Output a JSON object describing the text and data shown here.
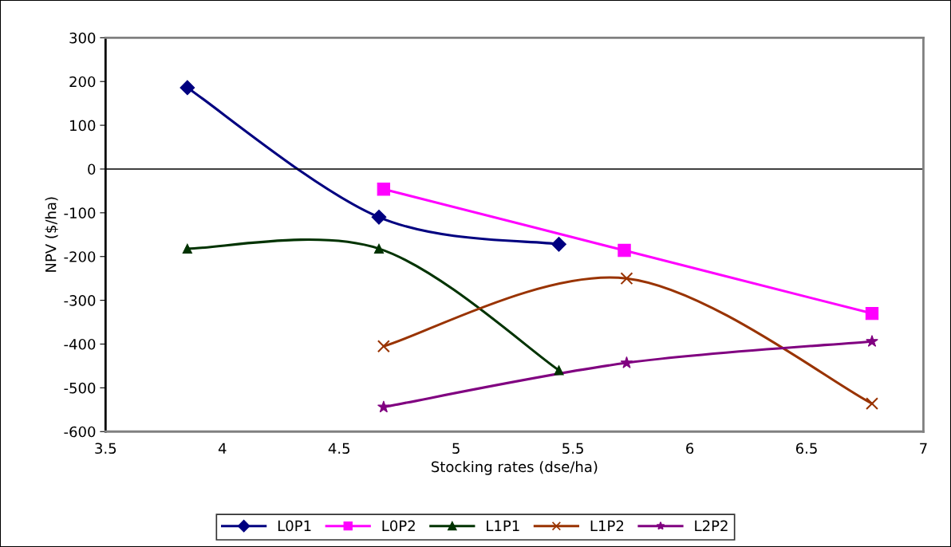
{
  "chart_data": {
    "type": "line",
    "xlabel": "Stocking rates (dse/ha)",
    "ylabel": "NPV ($/ha)",
    "xlim": [
      3.5,
      7
    ],
    "xticks": [
      3.5,
      4,
      4.5,
      5,
      5.5,
      6,
      6.5,
      7
    ],
    "ylim": [
      -600,
      300
    ],
    "yticks": [
      -600,
      -500,
      -400,
      -300,
      -200,
      -100,
      0,
      100,
      200,
      300
    ],
    "grid": false,
    "legend": "bottom",
    "line_style": "solid",
    "ref_lines": [
      {
        "axis": "y",
        "value": 0,
        "color": "#000000"
      }
    ],
    "series": [
      {
        "name": "L0P1",
        "color": "#000080",
        "marker": "diamond",
        "x": [
          3.85,
          4.67,
          5.44
        ],
        "values": [
          186,
          -110,
          -172
        ]
      },
      {
        "name": "L0P2",
        "color": "#ff00ff",
        "marker": "square",
        "x": [
          4.69,
          5.72,
          6.78
        ],
        "values": [
          -46,
          -186,
          -330
        ]
      },
      {
        "name": "L1P1",
        "color": "#003300",
        "marker": "triangle",
        "x": [
          3.85,
          4.67,
          5.44
        ],
        "values": [
          -182,
          -182,
          -460
        ]
      },
      {
        "name": "L1P2",
        "color": "#993300",
        "marker": "cross",
        "x": [
          4.69,
          5.73,
          6.78
        ],
        "values": [
          -405,
          -250,
          -536
        ]
      },
      {
        "name": "L2P2",
        "color": "#800080",
        "marker": "star",
        "x": [
          4.69,
          5.73,
          6.78
        ],
        "values": [
          -544,
          -443,
          -394
        ]
      }
    ]
  }
}
